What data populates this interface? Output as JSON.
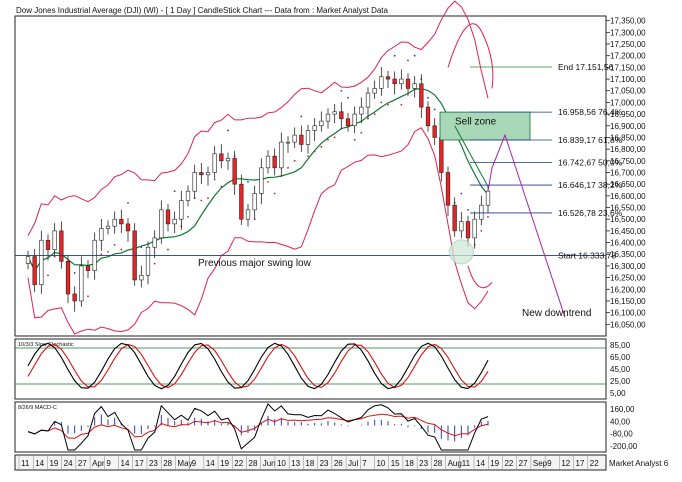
{
  "title": "Dow Jones Industrial Average (DJI) (WI) -  [ 1 Day ] CandleStick Chart --- Data from : Market Analyst Data",
  "footer": "Market Analyst 6",
  "colors": {
    "up": "#ffffff",
    "down": "#ee2222",
    "ma": "#117733",
    "bb": "#dd2255",
    "fib": "#1a3a8a",
    "end": "#2a8a2a",
    "trend": "#aa22aa",
    "k": "#000000",
    "d": "#dd1111",
    "zone": "#a8d8b8",
    "level": "#1a3a8a"
  },
  "chart_data": [
    {
      "type": "candlestick",
      "name": "price",
      "y_ticks": [
        "17,350,00",
        "17,300,00",
        "17,250,00",
        "17,200,00",
        "17,150,00",
        "17,100,00",
        "17,050,00",
        "17,000,00",
        "16,950,00",
        "16,900,00",
        "16,850,00",
        "16,800,00",
        "16,750,00",
        "16,700,00",
        "16,650,00",
        "16,600,00",
        "16,550,00",
        "16,500,00",
        "16,450,00",
        "16,400,00",
        "16,350,00",
        "16,300,00",
        "16,250,00",
        "16,200,00",
        "16,150,00",
        "16,100,00",
        "16,050,00"
      ],
      "ylim": [
        16000,
        17370
      ],
      "x_labels": [
        "11",
        "14",
        "19",
        "24",
        "27",
        "Apr",
        "9",
        "14",
        "17",
        "23",
        "28",
        "May",
        "9",
        "14",
        "19",
        "22",
        "28",
        "Jun",
        "10",
        "13",
        "18",
        "23",
        "26",
        "Jul",
        "7",
        "10",
        "15",
        "18",
        "23",
        "28",
        "Aug",
        "11",
        "14",
        "19",
        "22",
        "27",
        "Sep",
        "9",
        "12",
        "17",
        "22"
      ],
      "close": [
        16340,
        16220,
        16410,
        16370,
        16450,
        16320,
        16180,
        16150,
        16300,
        16280,
        16410,
        16460,
        16470,
        16500,
        16480,
        16450,
        16240,
        16260,
        16380,
        16420,
        16540,
        16480,
        16500,
        16580,
        16620,
        16700,
        16690,
        16700,
        16780,
        16750,
        16760,
        16650,
        16500,
        16540,
        16610,
        16720,
        16770,
        16720,
        16830,
        16830,
        16860,
        16820,
        16880,
        16900,
        16920,
        16950,
        16960,
        16930,
        16900,
        16950,
        16980,
        17040,
        17060,
        17110,
        17100,
        17080,
        17100,
        17060,
        17080,
        16980,
        16900,
        16850,
        16700,
        16560,
        16450,
        16490,
        16420,
        16500,
        16560,
        16620
      ],
      "end_label": "End 17.151,56",
      "start_label": "Start 16.333,78",
      "fib_levels": [
        {
          "label": "16.958,56 76,4%",
          "value": 16958.56
        },
        {
          "label": "16.839,17 61,8%",
          "value": 16839.17
        },
        {
          "label": "16.742,67 50,0%",
          "value": 16742.67
        },
        {
          "label": "16.646,17 38,2%",
          "value": 16646.17
        },
        {
          "label": "16.526,78 23,6%",
          "value": 16526.78
        }
      ],
      "annotations": {
        "sell_zone": "Sell zone",
        "swing_low": "Previous major swing low",
        "downtrend": "New downtrend"
      }
    },
    {
      "type": "line",
      "name": "10/3/3 Slow Stochastic",
      "y_ticks": [
        "85,00",
        "65,00",
        "45,00",
        "25,00",
        "5,00"
      ],
      "ylim": [
        -5,
        95
      ],
      "lines": [
        80,
        20
      ]
    },
    {
      "type": "line",
      "name": "8/26/9 MACD-C",
      "y_ticks": [
        "160,00",
        "40,00",
        "-80,00",
        "-200,00"
      ],
      "ylim": [
        -260,
        230
      ]
    }
  ]
}
